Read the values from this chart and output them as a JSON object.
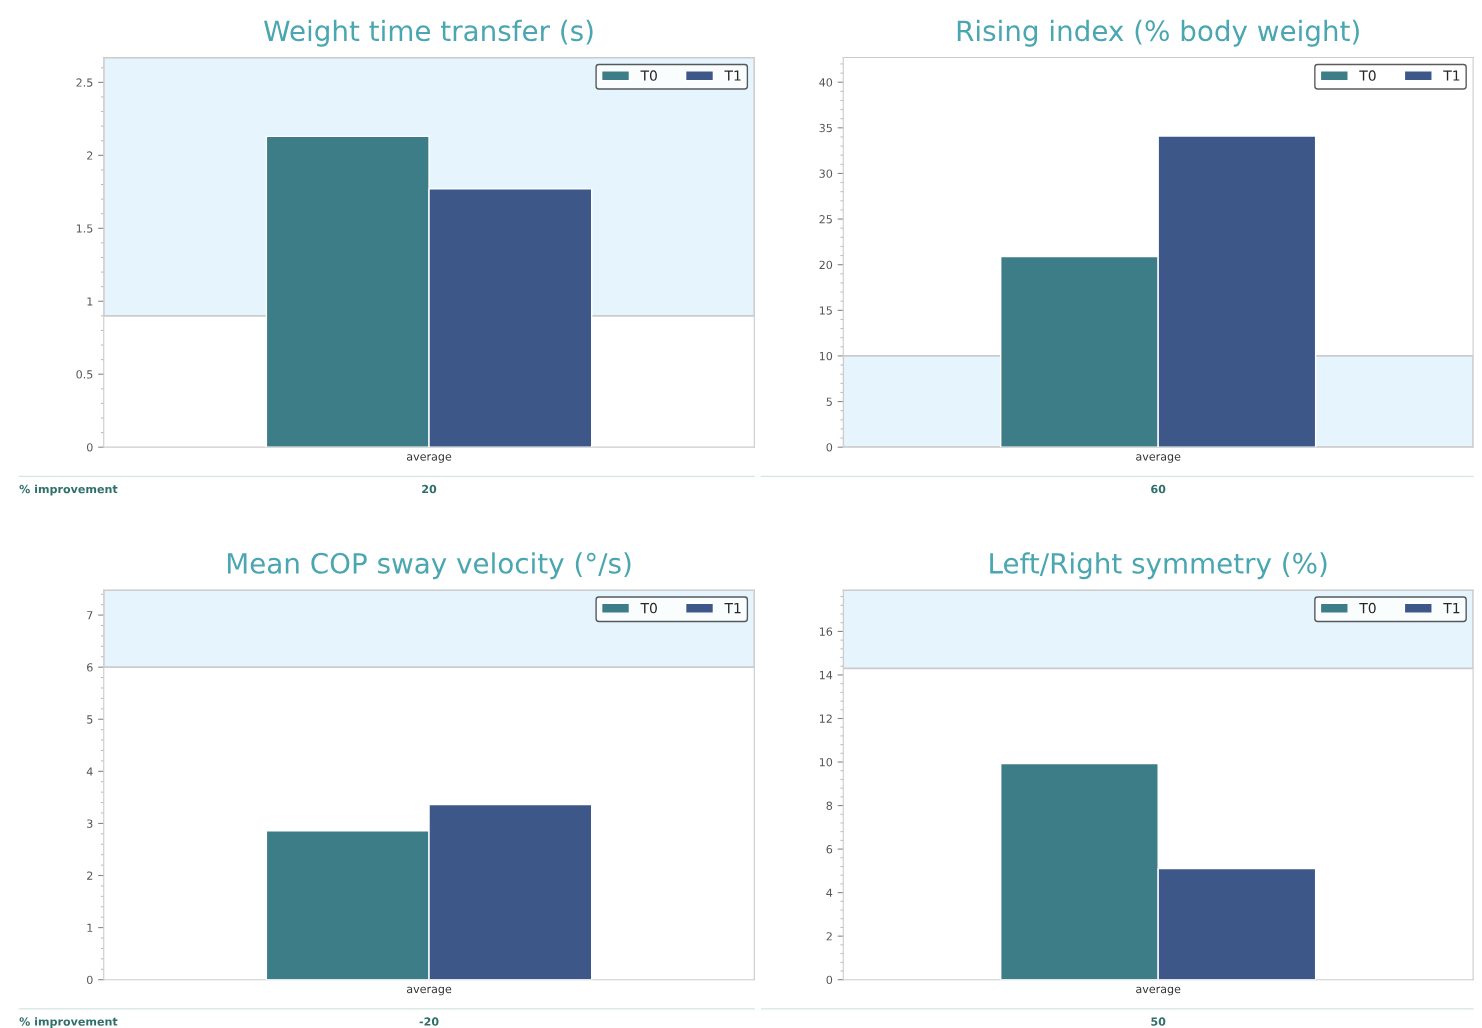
{
  "chart_data": [
    {
      "type": "bar",
      "title": "Weight time transfer (s)",
      "categories": [
        "average"
      ],
      "series": [
        {
          "name": "T0",
          "color": "#3d7d87",
          "values": [
            2.13
          ]
        },
        {
          "name": "T1",
          "color": "#3d5888",
          "values": [
            1.77
          ]
        }
      ],
      "ylim": [
        0,
        2.67
      ],
      "yticks": [
        0,
        0.5,
        1,
        1.5,
        2,
        2.5
      ],
      "bands": [
        {
          "axis": "y",
          "from": 0.9,
          "to": 2.67,
          "color": "#e6f5fd"
        }
      ],
      "annotations": [
        "% improvement",
        "20"
      ],
      "legend": "top right"
    },
    {
      "type": "bar",
      "title": "Rising index (% body weight)",
      "categories": [
        "average"
      ],
      "series": [
        {
          "name": "T0",
          "color": "#3d7d87",
          "values": [
            20.9
          ]
        },
        {
          "name": "T1",
          "color": "#3d5888",
          "values": [
            34.1
          ]
        }
      ],
      "ylim": [
        0,
        42.7
      ],
      "yticks": [
        0,
        5,
        10,
        15,
        20,
        25,
        30,
        35,
        40
      ],
      "bands": [
        {
          "axis": "y",
          "from": 0,
          "to": 10,
          "color": "#e6f5fd"
        }
      ],
      "annotations": [
        "60"
      ],
      "legend": "top right"
    },
    {
      "type": "bar",
      "title": "Mean COP sway velocity (°/s)",
      "categories": [
        "average"
      ],
      "series": [
        {
          "name": "T0",
          "color": "#3d7d87",
          "values": [
            2.86
          ]
        },
        {
          "name": "T1",
          "color": "#3d5888",
          "values": [
            3.36
          ]
        }
      ],
      "ylim": [
        0,
        7.48
      ],
      "yticks": [
        0,
        1,
        2,
        3,
        4,
        5,
        6,
        7
      ],
      "bands": [
        {
          "axis": "y",
          "from": 6,
          "to": 7.48,
          "color": "#e6f5fd"
        }
      ],
      "annotations": [
        "% improvement",
        "-20"
      ],
      "legend": "top right"
    },
    {
      "type": "bar",
      "title": "Left/Right symmetry (%)",
      "categories": [
        "average"
      ],
      "series": [
        {
          "name": "T0",
          "color": "#3d7d87",
          "values": [
            9.93
          ]
        },
        {
          "name": "T1",
          "color": "#3d5888",
          "values": [
            5.1
          ]
        }
      ],
      "ylim": [
        0,
        17.9
      ],
      "yticks": [
        0,
        2,
        4,
        6,
        8,
        10,
        12,
        14,
        16
      ],
      "bands": [
        {
          "axis": "y",
          "from": 14.3,
          "to": 17.9,
          "color": "#e6f5fd"
        }
      ],
      "annotations": [
        "50"
      ],
      "legend": "top right"
    }
  ]
}
